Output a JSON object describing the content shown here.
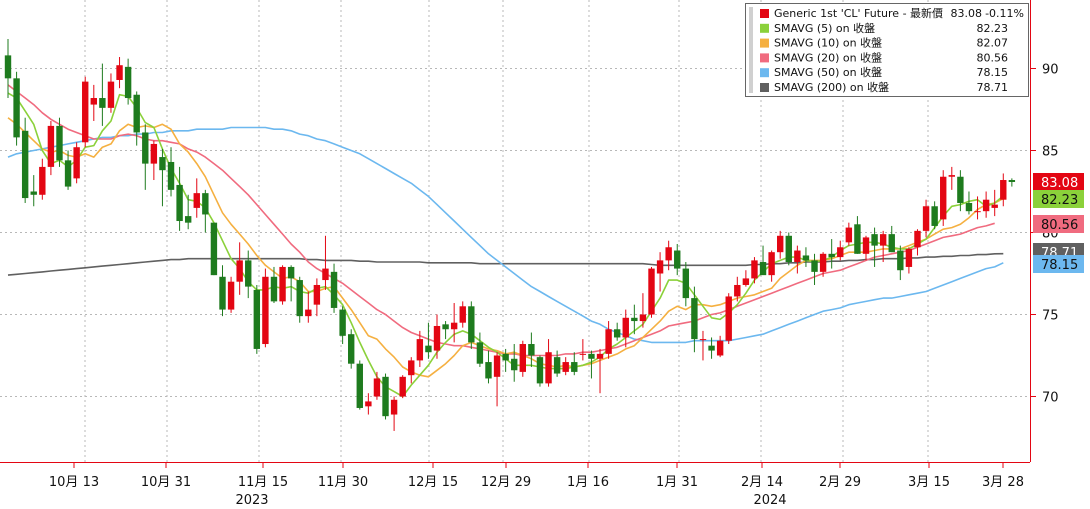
{
  "chart_data": {
    "type": "candlestick",
    "y_axis": {
      "position": "right",
      "ticks": [
        70,
        75,
        80,
        85,
        90
      ],
      "range": [
        65,
        94
      ]
    },
    "x_axis": {
      "ticks": [
        "10月 13",
        "10月 31",
        "11月 15",
        "11月 30",
        "12月 15",
        "12月 29",
        "1月 16",
        "1月 31",
        "2月 14",
        "2月 29",
        "3月 15",
        "3月 28"
      ],
      "years": [
        "2023",
        "2024"
      ]
    },
    "grid": true,
    "legend": {
      "placement": "top-right",
      "entries": [
        {
          "label": "Generic 1st 'CL' Future - 最新價",
          "value": "83.08",
          "change": "-0.11%",
          "color": "#e30613"
        },
        {
          "label": "SMAVG (5)  on 收盤",
          "value": "82.23",
          "color": "#8bd13a"
        },
        {
          "label": "SMAVG (10)  on 收盤",
          "value": "82.07",
          "color": "#f5b041"
        },
        {
          "label": "SMAVG (20)  on 收盤",
          "value": "80.56",
          "color": "#f06b7f"
        },
        {
          "label": "SMAVG (50)  on 收盤",
          "value": "78.15",
          "color": "#6cb8ef"
        },
        {
          "label": "SMAVG (200)  on 收盤",
          "value": "78.71",
          "color": "#606060"
        }
      ]
    },
    "price_tags": [
      {
        "value": "83.08",
        "bg": "#e30613",
        "fg": "#ffffff",
        "y": 83.08
      },
      {
        "value": "82.23",
        "bg": "#8bd13a",
        "fg": "#111111",
        "y": 82.23
      },
      {
        "value": "80.56",
        "bg": "#f06b7f",
        "fg": "#111111",
        "y": 80.56
      },
      {
        "value": "78.71",
        "bg": "#606060",
        "fg": "#ffffff",
        "y": 78.71
      },
      {
        "value": "78.15",
        "bg": "#6cb8ef",
        "fg": "#111111",
        "y": 78.15
      }
    ],
    "candles": [
      [
        90.8,
        91.8,
        88.2,
        89.4
      ],
      [
        89.4,
        89.8,
        85.3,
        85.8
      ],
      [
        86.2,
        87.0,
        81.8,
        82.1
      ],
      [
        82.5,
        83.5,
        81.6,
        82.3
      ],
      [
        82.3,
        84.5,
        82.0,
        84.0
      ],
      [
        84.0,
        86.8,
        83.5,
        86.5
      ],
      [
        86.5,
        87.0,
        84.0,
        84.4
      ],
      [
        84.4,
        85.0,
        82.6,
        82.8
      ],
      [
        83.3,
        85.5,
        83.0,
        85.2
      ],
      [
        85.5,
        89.5,
        85.2,
        89.2
      ],
      [
        87.8,
        89.0,
        86.8,
        88.2
      ],
      [
        88.2,
        90.3,
        86.5,
        87.6
      ],
      [
        87.6,
        89.7,
        87.3,
        89.2
      ],
      [
        89.3,
        90.7,
        88.8,
        90.2
      ],
      [
        90.1,
        90.6,
        87.8,
        88.2
      ],
      [
        88.4,
        88.6,
        85.3,
        86.1
      ],
      [
        86.1,
        86.6,
        82.6,
        84.2
      ],
      [
        84.2,
        85.6,
        83.2,
        85.4
      ],
      [
        84.6,
        85.1,
        81.6,
        83.8
      ],
      [
        84.3,
        85.2,
        82.2,
        82.6
      ],
      [
        82.9,
        84.0,
        80.1,
        80.7
      ],
      [
        81.0,
        82.3,
        80.2,
        80.6
      ],
      [
        81.5,
        83.3,
        80.9,
        82.4
      ],
      [
        82.4,
        82.6,
        80.0,
        81.1
      ],
      [
        80.6,
        80.6,
        77.4,
        77.4
      ],
      [
        77.3,
        78.0,
        74.9,
        75.3
      ],
      [
        75.3,
        77.3,
        75.1,
        77.0
      ],
      [
        77.0,
        79.4,
        76.2,
        78.3
      ],
      [
        78.3,
        78.9,
        76.0,
        76.7
      ],
      [
        76.5,
        76.8,
        72.6,
        72.9
      ],
      [
        73.2,
        77.8,
        73.0,
        77.3
      ],
      [
        77.3,
        77.9,
        75.7,
        75.8
      ],
      [
        75.8,
        78.0,
        75.6,
        77.9
      ],
      [
        77.9,
        78.0,
        75.8,
        77.2
      ],
      [
        77.1,
        77.3,
        74.5,
        74.9
      ],
      [
        74.9,
        76.4,
        74.5,
        75.3
      ],
      [
        75.6,
        77.2,
        74.9,
        76.8
      ],
      [
        77.1,
        79.8,
        76.5,
        77.8
      ],
      [
        77.6,
        78.1,
        75.1,
        75.4
      ],
      [
        75.3,
        75.5,
        73.2,
        73.7
      ],
      [
        73.8,
        74.1,
        71.7,
        72.0
      ],
      [
        72.0,
        72.2,
        69.2,
        69.3
      ],
      [
        69.4,
        70.2,
        68.9,
        69.7
      ],
      [
        70.0,
        71.5,
        69.8,
        71.1
      ],
      [
        71.2,
        71.4,
        68.6,
        68.8
      ],
      [
        68.9,
        70.0,
        67.9,
        69.8
      ],
      [
        70.0,
        71.3,
        69.9,
        71.2
      ],
      [
        71.3,
        72.4,
        70.8,
        72.2
      ],
      [
        72.2,
        74.0,
        71.8,
        73.5
      ],
      [
        73.1,
        74.5,
        72.3,
        72.7
      ],
      [
        72.8,
        75.0,
        72.3,
        74.3
      ],
      [
        74.4,
        74.6,
        73.5,
        74.1
      ],
      [
        74.1,
        75.7,
        73.3,
        74.5
      ],
      [
        74.5,
        75.8,
        74.2,
        75.5
      ],
      [
        75.5,
        75.8,
        72.9,
        73.3
      ],
      [
        73.3,
        73.9,
        71.8,
        72.0
      ],
      [
        72.1,
        72.8,
        70.8,
        71.1
      ],
      [
        71.2,
        72.7,
        69.4,
        72.5
      ],
      [
        72.6,
        72.9,
        71.5,
        72.2
      ],
      [
        72.3,
        73.2,
        70.9,
        71.6
      ],
      [
        71.5,
        73.4,
        71.2,
        73.2
      ],
      [
        73.2,
        73.9,
        71.8,
        72.5
      ],
      [
        72.4,
        72.5,
        70.6,
        70.8
      ],
      [
        70.8,
        73.5,
        70.6,
        72.7
      ],
      [
        72.4,
        72.8,
        71.2,
        71.4
      ],
      [
        71.5,
        72.4,
        71.3,
        72.1
      ],
      [
        72.1,
        72.7,
        71.3,
        71.5
      ],
      [
        72.6,
        73.5,
        72.2,
        72.6
      ],
      [
        72.6,
        72.8,
        71.1,
        72.3
      ],
      [
        72.3,
        72.9,
        70.2,
        72.6
      ],
      [
        72.6,
        74.6,
        72.3,
        74.1
      ],
      [
        74.1,
        74.5,
        73.4,
        73.6
      ],
      [
        73.6,
        75.3,
        73.0,
        74.8
      ],
      [
        74.8,
        75.6,
        73.8,
        74.6
      ],
      [
        74.6,
        76.3,
        74.2,
        75.0
      ],
      [
        75.0,
        77.9,
        74.8,
        77.8
      ],
      [
        77.5,
        78.8,
        76.4,
        78.3
      ],
      [
        78.3,
        79.5,
        77.7,
        79.1
      ],
      [
        78.9,
        79.3,
        77.4,
        77.8
      ],
      [
        77.8,
        78.2,
        75.5,
        76.0
      ],
      [
        76.0,
        76.7,
        72.7,
        73.5
      ],
      [
        73.5,
        74.0,
        72.2,
        73.5
      ],
      [
        73.1,
        73.6,
        72.3,
        72.8
      ],
      [
        72.5,
        73.7,
        72.4,
        73.4
      ],
      [
        73.4,
        76.3,
        73.2,
        76.1
      ],
      [
        76.1,
        77.3,
        75.8,
        76.8
      ],
      [
        76.8,
        77.7,
        76.7,
        77.2
      ],
      [
        77.2,
        78.5,
        76.9,
        78.3
      ],
      [
        78.2,
        79.2,
        77.5,
        77.4
      ],
      [
        77.4,
        78.9,
        77.0,
        78.8
      ],
      [
        78.8,
        80.1,
        78.4,
        79.8
      ],
      [
        79.8,
        80.0,
        78.0,
        78.2
      ],
      [
        78.2,
        79.2,
        77.5,
        78.9
      ],
      [
        78.6,
        79.1,
        77.9,
        78.3
      ],
      [
        78.3,
        78.7,
        76.8,
        77.6
      ],
      [
        77.6,
        78.8,
        77.3,
        78.7
      ],
      [
        78.7,
        79.6,
        77.8,
        78.5
      ],
      [
        78.5,
        79.5,
        78.3,
        79.1
      ],
      [
        79.4,
        80.6,
        79.2,
        80.3
      ],
      [
        80.5,
        81.0,
        78.7,
        78.7
      ],
      [
        78.7,
        79.8,
        78.3,
        79.7
      ],
      [
        79.9,
        80.3,
        77.9,
        79.2
      ],
      [
        79.2,
        80.1,
        78.2,
        79.9
      ],
      [
        79.9,
        80.4,
        78.8,
        78.8
      ],
      [
        78.9,
        79.2,
        77.1,
        77.7
      ],
      [
        77.9,
        79.1,
        77.5,
        79.0
      ],
      [
        79.1,
        80.2,
        78.6,
        80.1
      ],
      [
        80.1,
        82.0,
        79.7,
        81.6
      ],
      [
        81.6,
        81.9,
        80.2,
        80.4
      ],
      [
        80.8,
        83.8,
        80.4,
        83.4
      ],
      [
        83.4,
        84.0,
        82.6,
        83.5
      ],
      [
        83.4,
        83.8,
        81.3,
        81.8
      ],
      [
        81.8,
        82.5,
        81.1,
        81.3
      ],
      [
        81.3,
        82.2,
        80.8,
        81.3
      ],
      [
        81.3,
        82.5,
        80.9,
        82.0
      ],
      [
        81.5,
        82.6,
        81.0,
        81.7
      ],
      [
        82.0,
        83.6,
        81.6,
        83.2
      ],
      [
        83.2,
        83.3,
        82.8,
        83.08
      ]
    ],
    "sma5": [
      88.5,
      88.2,
      87.4,
      86.6,
      85.0,
      84.2,
      84.4,
      84.0,
      84.4,
      85.2,
      85.3,
      86.2,
      86.8,
      88.4,
      88.3,
      87.6,
      86.7,
      86.4,
      85.1,
      83.9,
      83.0,
      82.0,
      81.9,
      81.5,
      80.6,
      79.5,
      78.4,
      77.8,
      77.0,
      76.5,
      76.5,
      76.7,
      76.6,
      76.7,
      76.4,
      76.3,
      76.6,
      76.7,
      76.2,
      75.6,
      74.5,
      73.3,
      72.2,
      71.2,
      70.6,
      70.3,
      70.0,
      70.7,
      71.3,
      71.9,
      72.7,
      73.3,
      73.8,
      74.0,
      73.8,
      73.4,
      73.0,
      72.7,
      72.3,
      71.9,
      71.9,
      71.9,
      71.8,
      71.7,
      71.7,
      71.7,
      71.8,
      71.9,
      72.1,
      72.4,
      72.9,
      73.2,
      73.6,
      74.0,
      74.4,
      75.2,
      76.0,
      77.1,
      77.1,
      76.9,
      76.2,
      75.5,
      74.8,
      74.7,
      75.1,
      75.6,
      76.3,
      77.1,
      77.6,
      78.1,
      78.3,
      78.5,
      78.5,
      78.3,
      78.2,
      78.3,
      78.5,
      78.9,
      79.2,
      79.3,
      79.4,
      79.4,
      79.3,
      79.1,
      79.0,
      79.0,
      79.3,
      79.6,
      80.3,
      81.0,
      81.6,
      81.7,
      81.9,
      82.0,
      81.6,
      81.8,
      82.23
    ],
    "sma10": [
      87.0,
      86.6,
      86.1,
      85.6,
      85.1,
      84.9,
      85.0,
      84.7,
      84.6,
      84.8,
      84.6,
      85.2,
      85.4,
      86.2,
      86.6,
      86.4,
      86.5,
      86.4,
      86.6,
      86.3,
      85.4,
      84.9,
      84.2,
      83.4,
      82.3,
      81.2,
      80.5,
      79.9,
      79.3,
      78.6,
      78.0,
      77.6,
      77.2,
      77.3,
      77.0,
      76.4,
      76.4,
      76.6,
      76.7,
      76.0,
      75.3,
      74.5,
      73.7,
      73.5,
      72.9,
      72.4,
      71.8,
      71.5,
      71.3,
      71.2,
      71.6,
      72.0,
      72.5,
      73.1,
      73.3,
      73.1,
      72.9,
      72.8,
      72.6,
      72.7,
      72.5,
      72.3,
      72.0,
      71.9,
      71.8,
      71.9,
      71.8,
      71.9,
      72.0,
      72.2,
      72.4,
      72.6,
      72.9,
      73.1,
      73.6,
      74.1,
      74.6,
      75.2,
      75.5,
      75.3,
      75.6,
      75.6,
      75.5,
      75.6,
      75.8,
      76.0,
      76.1,
      76.2,
      76.4,
      76.6,
      77.2,
      77.6,
      78.0,
      78.3,
      78.3,
      78.3,
      78.4,
      78.6,
      78.8,
      78.8,
      78.8,
      78.9,
      79.0,
      79.0,
      79.0,
      79.2,
      79.4,
      79.6,
      79.9,
      80.2,
      80.3,
      80.5,
      80.9,
      81.4,
      81.7,
      81.8,
      82.07
    ],
    "sma20": [
      89.0,
      88.6,
      88.2,
      87.8,
      87.3,
      86.9,
      86.6,
      86.3,
      86.1,
      85.9,
      85.7,
      85.7,
      85.7,
      85.9,
      86.0,
      85.9,
      85.7,
      85.6,
      85.6,
      85.5,
      85.4,
      85.1,
      84.9,
      84.6,
      84.2,
      83.8,
      83.3,
      82.8,
      82.3,
      81.7,
      81.1,
      80.5,
      79.9,
      79.3,
      78.8,
      78.2,
      77.8,
      77.5,
      77.2,
      76.9,
      76.5,
      76.1,
      75.7,
      75.3,
      75.0,
      74.6,
      74.2,
      73.9,
      73.7,
      73.5,
      73.3,
      73.2,
      73.1,
      73.1,
      73.0,
      72.9,
      72.8,
      72.7,
      72.6,
      72.6,
      72.5,
      72.5,
      72.5,
      72.5,
      72.5,
      72.6,
      72.6,
      72.7,
      72.7,
      72.8,
      72.9,
      73.0,
      73.2,
      73.4,
      73.6,
      73.8,
      74.0,
      74.3,
      74.4,
      74.5,
      74.6,
      74.8,
      75.0,
      75.1,
      75.3,
      75.5,
      75.7,
      75.9,
      76.1,
      76.3,
      76.5,
      76.7,
      76.9,
      77.1,
      77.3,
      77.5,
      77.6,
      77.7,
      77.9,
      78.1,
      78.3,
      78.5,
      78.6,
      78.7,
      78.8,
      78.9,
      79.1,
      79.3,
      79.5,
      79.7,
      79.8,
      79.9,
      80.1,
      80.3,
      80.4,
      80.56
    ],
    "sma50": [
      84.6,
      84.8,
      84.9,
      85.0,
      85.1,
      85.2,
      85.3,
      85.4,
      85.5,
      85.6,
      85.7,
      85.8,
      85.8,
      85.9,
      85.9,
      86.0,
      86.0,
      86.1,
      86.1,
      86.2,
      86.2,
      86.2,
      86.3,
      86.3,
      86.3,
      86.3,
      86.4,
      86.4,
      86.4,
      86.4,
      86.4,
      86.3,
      86.3,
      86.2,
      86.0,
      85.9,
      85.7,
      85.6,
      85.4,
      85.2,
      85.0,
      84.8,
      84.5,
      84.2,
      83.9,
      83.6,
      83.3,
      83.0,
      82.6,
      82.2,
      81.7,
      81.2,
      80.7,
      80.2,
      79.7,
      79.2,
      78.7,
      78.3,
      77.9,
      77.5,
      77.1,
      76.7,
      76.4,
      76.1,
      75.8,
      75.5,
      75.2,
      74.9,
      74.6,
      74.4,
      74.1,
      73.9,
      73.7,
      73.5,
      73.4,
      73.3,
      73.3,
      73.3,
      73.3,
      73.3,
      73.4,
      73.4,
      73.4,
      73.4,
      73.4,
      73.5,
      73.6,
      73.7,
      73.8,
      74.0,
      74.2,
      74.4,
      74.6,
      74.8,
      75.0,
      75.2,
      75.3,
      75.4,
      75.6,
      75.7,
      75.8,
      75.9,
      76.0,
      76.0,
      76.1,
      76.2,
      76.3,
      76.4,
      76.6,
      76.8,
      77.0,
      77.2,
      77.4,
      77.6,
      77.8,
      77.9,
      78.15
    ],
    "sma200": [
      77.4,
      77.45,
      77.5,
      77.55,
      77.6,
      77.65,
      77.7,
      77.75,
      77.8,
      77.85,
      77.9,
      77.95,
      78.0,
      78.05,
      78.1,
      78.15,
      78.2,
      78.25,
      78.3,
      78.35,
      78.35,
      78.4,
      78.4,
      78.4,
      78.4,
      78.4,
      78.4,
      78.4,
      78.4,
      78.4,
      78.4,
      78.4,
      78.4,
      78.4,
      78.4,
      78.35,
      78.35,
      78.3,
      78.3,
      78.3,
      78.3,
      78.25,
      78.25,
      78.2,
      78.2,
      78.2,
      78.2,
      78.2,
      78.2,
      78.15,
      78.15,
      78.15,
      78.15,
      78.15,
      78.15,
      78.1,
      78.1,
      78.1,
      78.1,
      78.1,
      78.1,
      78.1,
      78.1,
      78.1,
      78.1,
      78.1,
      78.1,
      78.1,
      78.1,
      78.1,
      78.1,
      78.1,
      78.1,
      78.1,
      78.1,
      78.05,
      78.0,
      78.0,
      78.0,
      78.0,
      78.0,
      78.0,
      78.0,
      78.0,
      78.0,
      78.0,
      78.0,
      78.05,
      78.05,
      78.1,
      78.1,
      78.15,
      78.15,
      78.2,
      78.2,
      78.2,
      78.25,
      78.25,
      78.3,
      78.3,
      78.35,
      78.35,
      78.4,
      78.4,
      78.4,
      78.45,
      78.45,
      78.5,
      78.5,
      78.55,
      78.55,
      78.6,
      78.6,
      78.65,
      78.65,
      78.7,
      78.71
    ]
  }
}
